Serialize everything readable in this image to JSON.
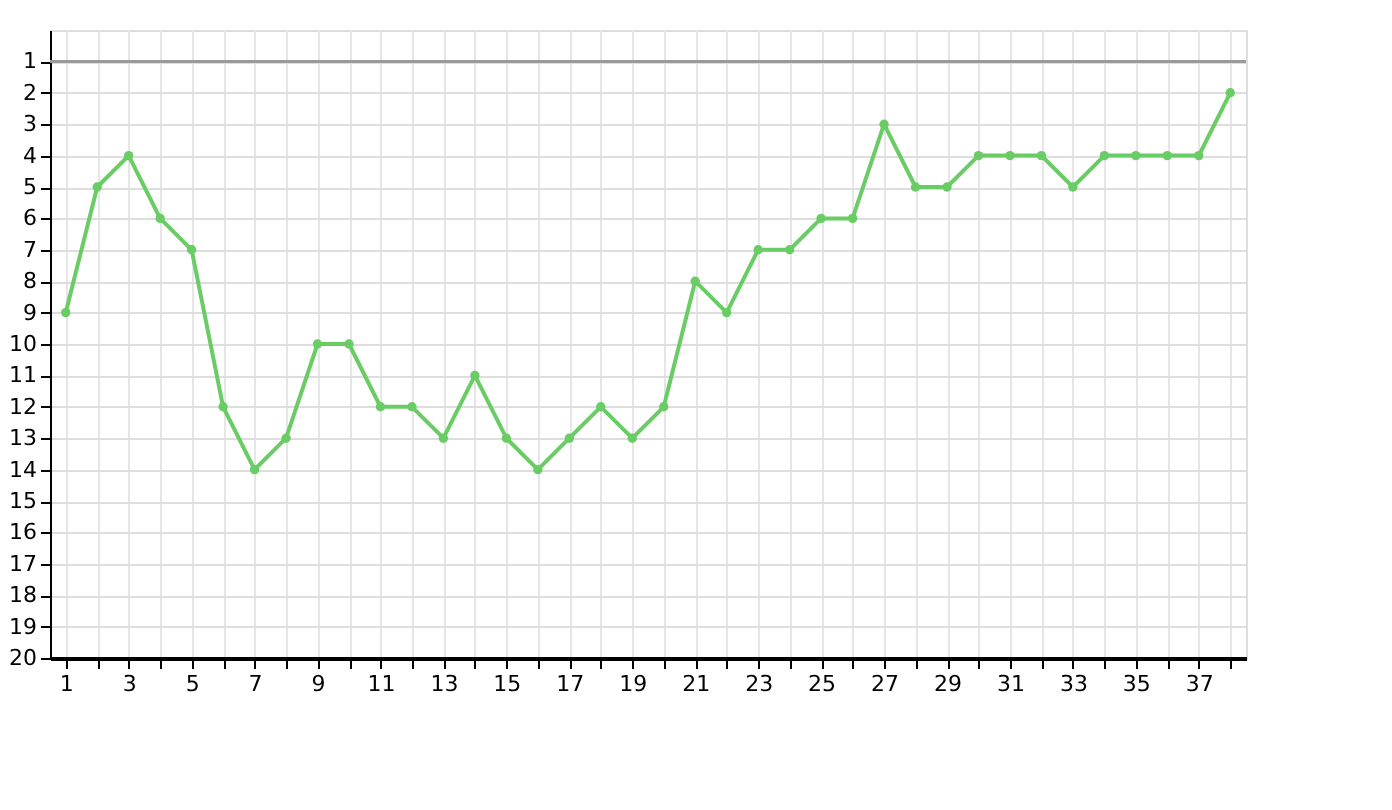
{
  "chart_data": {
    "type": "line",
    "x": [
      1,
      2,
      3,
      4,
      5,
      6,
      7,
      8,
      9,
      10,
      11,
      12,
      13,
      14,
      15,
      16,
      17,
      18,
      19,
      20,
      21,
      22,
      23,
      24,
      25,
      26,
      27,
      28,
      29,
      30,
      31,
      32,
      33,
      34,
      35,
      36,
      37,
      38
    ],
    "series": [
      {
        "color": "#6acc64",
        "values": [
          9,
          5,
          4,
          6,
          7,
          12,
          14,
          13,
          10,
          10,
          12,
          12,
          13,
          11,
          13,
          14,
          13,
          12,
          13,
          12,
          8,
          9,
          7,
          7,
          6,
          6,
          3,
          5,
          5,
          4,
          4,
          4,
          5,
          4,
          4,
          4,
          4,
          2
        ]
      }
    ],
    "xlim": [
      0.5,
      38.5
    ],
    "ylim": [
      20,
      0
    ],
    "xticks": [
      1,
      {
        "value": 2,
        "label": null
      },
      3,
      {
        "value": 4,
        "label": null
      },
      5,
      {
        "value": 6,
        "label": null
      },
      7,
      {
        "value": 8,
        "label": null
      },
      9,
      {
        "value": 10,
        "label": null
      },
      11,
      {
        "value": 12,
        "label": null
      },
      13,
      {
        "value": 14,
        "label": null
      },
      15,
      {
        "value": 16,
        "label": null
      },
      17,
      {
        "value": 18,
        "label": null
      },
      19,
      {
        "value": 20,
        "label": null
      },
      21,
      {
        "value": 22,
        "label": null
      },
      23,
      {
        "value": 24,
        "label": null
      },
      25,
      {
        "value": 26,
        "label": null
      },
      27,
      {
        "value": 28,
        "label": null
      },
      29,
      {
        "value": 30,
        "label": null
      },
      31,
      {
        "value": 32,
        "label": null
      },
      33,
      {
        "value": 34,
        "label": null
      },
      35,
      {
        "value": 36,
        "label": null
      },
      37,
      {
        "value": 38,
        "label": null
      }
    ],
    "yticks": [
      1,
      2,
      3,
      4,
      5,
      6,
      7,
      8,
      9,
      10,
      11,
      12,
      13,
      14,
      15,
      16,
      17,
      18,
      19,
      20
    ],
    "ref_lines": [
      {
        "axis": "y",
        "value": 1,
        "color": "#999999"
      }
    ],
    "grid": true,
    "marker": "circle",
    "line_style": "solid",
    "legend": false
  }
}
